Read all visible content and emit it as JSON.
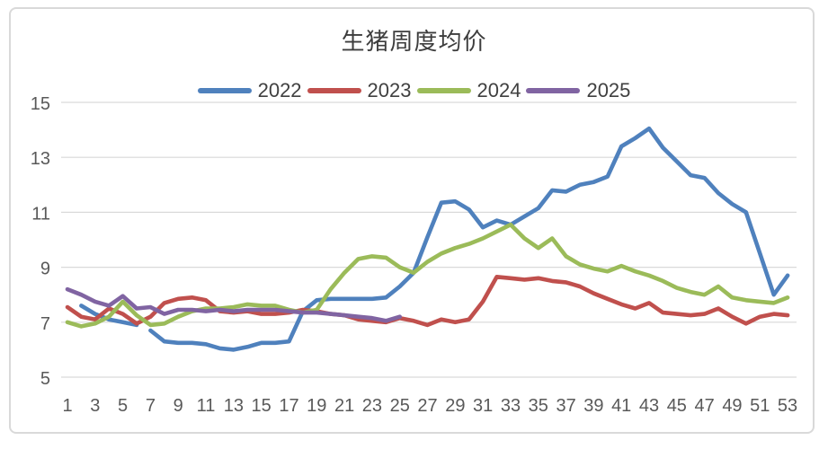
{
  "chart_data": {
    "type": "line",
    "title": "生猪周度均价",
    "xlabel": "",
    "ylabel": "",
    "x_unit": "week",
    "x_range": [
      1,
      53
    ],
    "x_label_ticks": [
      1,
      3,
      5,
      7,
      9,
      11,
      13,
      15,
      17,
      19,
      21,
      23,
      25,
      27,
      29,
      31,
      33,
      35,
      37,
      39,
      41,
      43,
      45,
      47,
      49,
      51,
      53
    ],
    "y_ticks": [
      5,
      7,
      9,
      11,
      13,
      15
    ],
    "ylim": [
      5,
      15
    ],
    "grid": true,
    "grid_color": "#d9d9d9",
    "legend_position": "top",
    "series": [
      {
        "name": "2022",
        "color": "#4F81BD",
        "segments": [
          {
            "start_week": 2,
            "values": [
              7.6,
              7.3,
              7.1,
              7.0,
              6.9
            ]
          },
          {
            "start_week": 7,
            "values": [
              6.7,
              6.3,
              6.25,
              6.25,
              6.2,
              6.05,
              6.0,
              6.1,
              6.25,
              6.25,
              6.3,
              7.4,
              7.8,
              7.85,
              7.85,
              7.85,
              7.85,
              7.9,
              8.3,
              8.8,
              10.1,
              11.35,
              11.4,
              11.1,
              10.45,
              10.7,
              10.55,
              10.85,
              11.15,
              11.8,
              11.75,
              12.0,
              12.1,
              12.3,
              13.4,
              13.7,
              14.05,
              13.35,
              12.85,
              12.35,
              12.25,
              11.7,
              11.3,
              11.0,
              9.5,
              8.0,
              8.7
            ]
          }
        ]
      },
      {
        "name": "2023",
        "color": "#C0504D",
        "segments": [
          {
            "start_week": 1,
            "values": [
              7.55,
              7.2,
              7.1,
              7.5,
              7.3,
              6.95,
              7.2,
              7.7,
              7.85,
              7.9,
              7.8,
              7.4,
              7.35,
              7.4,
              7.3,
              7.3,
              7.35,
              7.45,
              7.4,
              7.3,
              7.25,
              7.1,
              7.05,
              7.0,
              7.15,
              7.05,
              6.9,
              7.1,
              7.0,
              7.1,
              7.75,
              8.65,
              8.6,
              8.55,
              8.6,
              8.5,
              8.45,
              8.3,
              8.05,
              7.85,
              7.65,
              7.5,
              7.7,
              7.35,
              7.3,
              7.25,
              7.3,
              7.5,
              7.2,
              6.95,
              7.2,
              7.3,
              7.25
            ]
          }
        ]
      },
      {
        "name": "2024",
        "color": "#9BBB59",
        "segments": [
          {
            "start_week": 1,
            "values": [
              7.0,
              6.85,
              6.95,
              7.2,
              7.75,
              7.25,
              6.9,
              6.95,
              7.2,
              7.4,
              7.5,
              7.5,
              7.55,
              7.65,
              7.6,
              7.6,
              7.45,
              7.35,
              7.45,
              8.2,
              8.8,
              9.3,
              9.4,
              9.35,
              9.0,
              8.8,
              9.2,
              9.5,
              9.7,
              9.85,
              10.05,
              10.3,
              10.55,
              10.05,
              9.7,
              10.05,
              9.4,
              9.1,
              8.95,
              8.85,
              9.05,
              8.85,
              8.7,
              8.5,
              8.25,
              8.1,
              8.0,
              8.3,
              7.9,
              7.8,
              7.75,
              7.7,
              7.9
            ]
          }
        ]
      },
      {
        "name": "2025",
        "color": "#8064A2",
        "segments": [
          {
            "start_week": 1,
            "values": [
              8.2,
              8.0,
              7.75,
              7.6,
              7.95,
              7.5,
              7.55,
              7.3,
              7.45,
              7.45,
              7.4,
              7.45,
              7.4,
              7.45,
              7.45,
              7.45,
              7.4,
              7.35,
              7.35,
              7.3,
              7.25,
              7.2,
              7.15,
              7.05,
              7.2
            ]
          }
        ]
      }
    ]
  }
}
